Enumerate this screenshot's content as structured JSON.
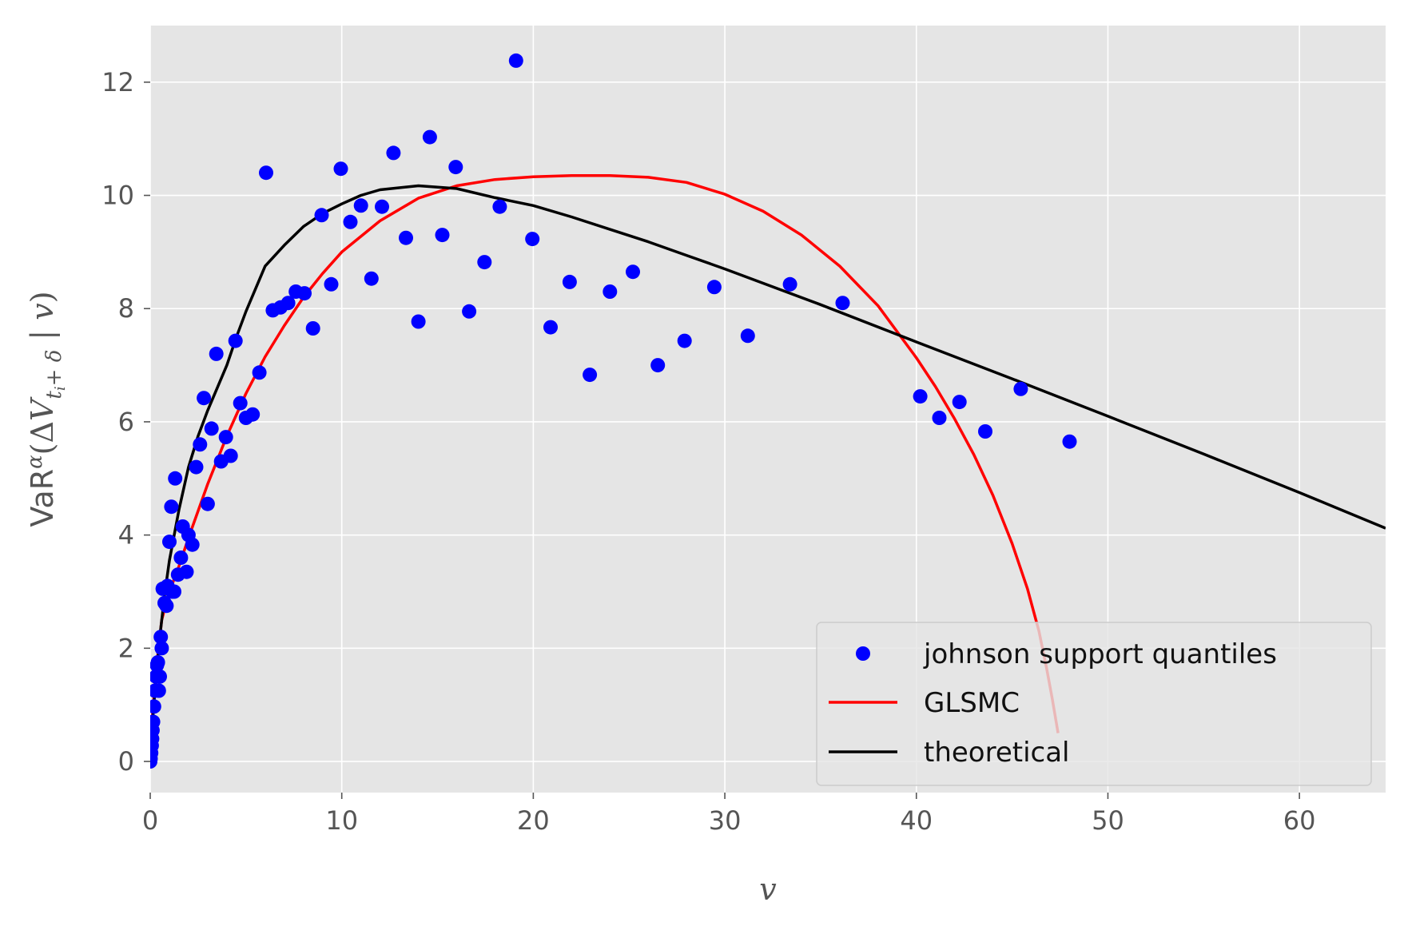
{
  "chart_data": {
    "type": "scatter",
    "xlabel": "v",
    "ylabel": "VaR^α(ΔV_{t_i+δ} | v)",
    "ylabel_parts": {
      "prefix": "VaR",
      "alpha": "α",
      "open": "(Δ",
      "var": "V",
      "sub": "t",
      "subsub": "i",
      "subrest": "+ δ",
      "bar": " | ",
      "cond": "v",
      "close": ")"
    },
    "xlim": [
      0,
      64.5
    ],
    "ylim": [
      -0.55,
      13.0
    ],
    "xticks": [
      0,
      10,
      20,
      30,
      40,
      50,
      60
    ],
    "yticks": [
      0,
      2,
      4,
      6,
      8,
      10,
      12
    ],
    "grid": true,
    "background": "#e5e5e5",
    "legend_position": "lower-right",
    "series": [
      {
        "name": "johnson support quantiles",
        "kind": "scatter",
        "color": "#0000ff",
        "points": [
          [
            0.0,
            0.0
          ],
          [
            0.02,
            0.05
          ],
          [
            0.05,
            0.15
          ],
          [
            0.08,
            0.28
          ],
          [
            0.1,
            0.4
          ],
          [
            0.12,
            0.55
          ],
          [
            0.15,
            0.7
          ],
          [
            0.2,
            0.97
          ],
          [
            0.25,
            1.25
          ],
          [
            0.3,
            1.5
          ],
          [
            0.35,
            1.7
          ],
          [
            0.4,
            1.75
          ],
          [
            0.45,
            1.25
          ],
          [
            0.5,
            1.5
          ],
          [
            0.55,
            2.2
          ],
          [
            0.6,
            2.0
          ],
          [
            0.65,
            3.05
          ],
          [
            0.75,
            2.8
          ],
          [
            0.85,
            2.75
          ],
          [
            0.9,
            3.1
          ],
          [
            1.0,
            3.88
          ],
          [
            1.1,
            4.5
          ],
          [
            1.15,
            3.0
          ],
          [
            1.25,
            3.0
          ],
          [
            1.3,
            5.0
          ],
          [
            1.45,
            3.3
          ],
          [
            1.6,
            3.6
          ],
          [
            1.7,
            4.15
          ],
          [
            1.9,
            3.35
          ],
          [
            2.0,
            4.0
          ],
          [
            2.2,
            3.83
          ],
          [
            2.4,
            5.2
          ],
          [
            2.6,
            5.6
          ],
          [
            2.8,
            6.42
          ],
          [
            3.0,
            4.55
          ],
          [
            3.2,
            5.88
          ],
          [
            3.45,
            7.2
          ],
          [
            3.7,
            5.3
          ],
          [
            3.95,
            5.73
          ],
          [
            4.2,
            5.4
          ],
          [
            4.45,
            7.43
          ],
          [
            4.7,
            6.33
          ],
          [
            5.0,
            6.07
          ],
          [
            5.35,
            6.13
          ],
          [
            5.7,
            6.87
          ],
          [
            6.05,
            10.4
          ],
          [
            6.4,
            7.97
          ],
          [
            6.8,
            8.02
          ],
          [
            7.2,
            8.1
          ],
          [
            7.6,
            8.3
          ],
          [
            8.05,
            8.27
          ],
          [
            8.5,
            7.65
          ],
          [
            8.95,
            9.65
          ],
          [
            9.45,
            8.43
          ],
          [
            9.95,
            10.47
          ],
          [
            10.45,
            9.53
          ],
          [
            11.0,
            9.82
          ],
          [
            11.55,
            8.53
          ],
          [
            12.1,
            9.8
          ],
          [
            12.7,
            10.75
          ],
          [
            13.35,
            9.25
          ],
          [
            14.0,
            7.77
          ],
          [
            14.6,
            11.03
          ],
          [
            15.25,
            9.3
          ],
          [
            15.95,
            10.5
          ],
          [
            16.65,
            7.95
          ],
          [
            17.45,
            8.82
          ],
          [
            18.25,
            9.8
          ],
          [
            19.1,
            12.38
          ],
          [
            19.95,
            9.23
          ],
          [
            20.9,
            7.67
          ],
          [
            21.9,
            8.47
          ],
          [
            22.95,
            6.83
          ],
          [
            24.0,
            8.3
          ],
          [
            25.2,
            8.65
          ],
          [
            26.5,
            7.0
          ],
          [
            27.9,
            7.43
          ],
          [
            29.45,
            8.38
          ],
          [
            31.2,
            7.52
          ],
          [
            33.4,
            8.43
          ],
          [
            36.15,
            8.1
          ],
          [
            40.2,
            6.45
          ],
          [
            41.2,
            6.07
          ],
          [
            42.25,
            6.35
          ],
          [
            43.6,
            5.83
          ],
          [
            45.45,
            6.58
          ],
          [
            48.0,
            5.65
          ]
        ]
      },
      {
        "name": "GLSMC",
        "kind": "line",
        "color": "#ff0000",
        "points": [
          [
            0.1,
            0.75
          ],
          [
            0.3,
            1.6
          ],
          [
            0.6,
            2.5
          ],
          [
            1.0,
            3.0
          ],
          [
            1.5,
            3.45
          ],
          [
            2.0,
            3.95
          ],
          [
            3.0,
            4.9
          ],
          [
            4.0,
            5.75
          ],
          [
            5.0,
            6.5
          ],
          [
            6.0,
            7.15
          ],
          [
            7.0,
            7.7
          ],
          [
            8.0,
            8.2
          ],
          [
            9.0,
            8.62
          ],
          [
            10.0,
            9.0
          ],
          [
            12.0,
            9.55
          ],
          [
            14.0,
            9.95
          ],
          [
            16.0,
            10.17
          ],
          [
            18.0,
            10.28
          ],
          [
            20.0,
            10.33
          ],
          [
            22.0,
            10.35
          ],
          [
            24.0,
            10.35
          ],
          [
            26.0,
            10.32
          ],
          [
            28.0,
            10.23
          ],
          [
            30.0,
            10.02
          ],
          [
            32.0,
            9.72
          ],
          [
            34.0,
            9.3
          ],
          [
            36.0,
            8.75
          ],
          [
            38.0,
            8.05
          ],
          [
            40.0,
            7.13
          ],
          [
            41.0,
            6.62
          ],
          [
            42.0,
            6.05
          ],
          [
            43.0,
            5.42
          ],
          [
            44.0,
            4.7
          ],
          [
            45.0,
            3.85
          ],
          [
            45.8,
            3.05
          ],
          [
            46.4,
            2.3
          ],
          [
            46.8,
            1.65
          ],
          [
            47.1,
            1.1
          ],
          [
            47.3,
            0.7
          ],
          [
            47.4,
            0.5
          ]
        ]
      },
      {
        "name": "theoretical",
        "kind": "line",
        "color": "#000000",
        "points": [
          [
            0.0,
            0.0
          ],
          [
            0.05,
            0.3
          ],
          [
            0.1,
            0.6
          ],
          [
            0.2,
            1.05
          ],
          [
            0.3,
            1.45
          ],
          [
            0.5,
            2.2
          ],
          [
            0.75,
            2.95
          ],
          [
            1.0,
            3.55
          ],
          [
            1.5,
            4.45
          ],
          [
            2.0,
            5.2
          ],
          [
            2.5,
            5.75
          ],
          [
            3.0,
            6.2
          ],
          [
            3.5,
            6.6
          ],
          [
            4.0,
            7.0
          ],
          [
            4.5,
            7.5
          ],
          [
            5.0,
            7.95
          ],
          [
            6.0,
            8.75
          ],
          [
            7.0,
            9.12
          ],
          [
            8.0,
            9.45
          ],
          [
            9.0,
            9.68
          ],
          [
            10.0,
            9.85
          ],
          [
            11.0,
            10.0
          ],
          [
            12.0,
            10.1
          ],
          [
            14.0,
            10.17
          ],
          [
            16.0,
            10.12
          ],
          [
            18.0,
            9.96
          ],
          [
            20.0,
            9.82
          ],
          [
            22.0,
            9.62
          ],
          [
            24.0,
            9.4
          ],
          [
            26.0,
            9.18
          ],
          [
            28.0,
            8.94
          ],
          [
            30.0,
            8.7
          ],
          [
            35.0,
            8.07
          ],
          [
            40.0,
            7.41
          ],
          [
            45.0,
            6.76
          ],
          [
            50.0,
            6.1
          ],
          [
            55.0,
            5.43
          ],
          [
            60.0,
            4.75
          ],
          [
            64.5,
            4.12
          ]
        ]
      }
    ]
  }
}
